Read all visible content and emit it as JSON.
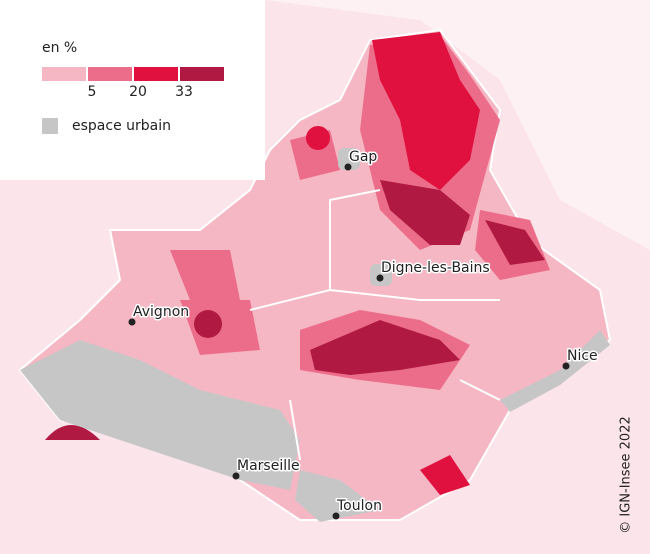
{
  "legend": {
    "title": "en %",
    "breaks": [
      5,
      20,
      33
    ],
    "colors": [
      "#f6b7c4",
      "#ec6d89",
      "#e0103f",
      "#b01a42"
    ],
    "urban_color": "#c6c6c6",
    "urban_label": "espace urbain"
  },
  "cities": [
    {
      "label": "Gap"
    },
    {
      "label": "Digne-les-Bains"
    },
    {
      "label": "Avignon"
    },
    {
      "label": "Nice"
    },
    {
      "label": "Marseille"
    },
    {
      "label": "Toulon"
    }
  ],
  "credit": "© IGN-Insee 2022"
}
